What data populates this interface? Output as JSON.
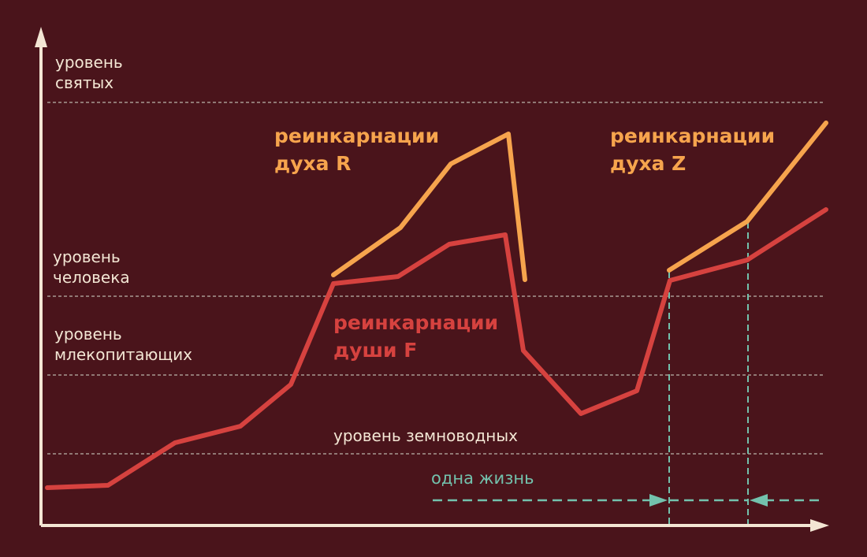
{
  "levels": {
    "saints": "уровень\nсвятых",
    "human": "уровень\nчеловека",
    "mammals": "уровень\nмлекопитающих",
    "amphibians": "уровень земноводных"
  },
  "series_labels": {
    "spirit_r": "реинкарнации\nдуха R",
    "soul_f": "реинкарнации\nдуши F",
    "spirit_z": "реинкарнации\nдуха Z"
  },
  "one_life_label": "одна жизнь",
  "colors": {
    "background": "#4a141b",
    "axis": "#f3e6d4",
    "spirit": "#f6a44d",
    "soul": "#d6423f",
    "life_marker": "#73c2ad",
    "gridline": "#a89a92"
  }
}
